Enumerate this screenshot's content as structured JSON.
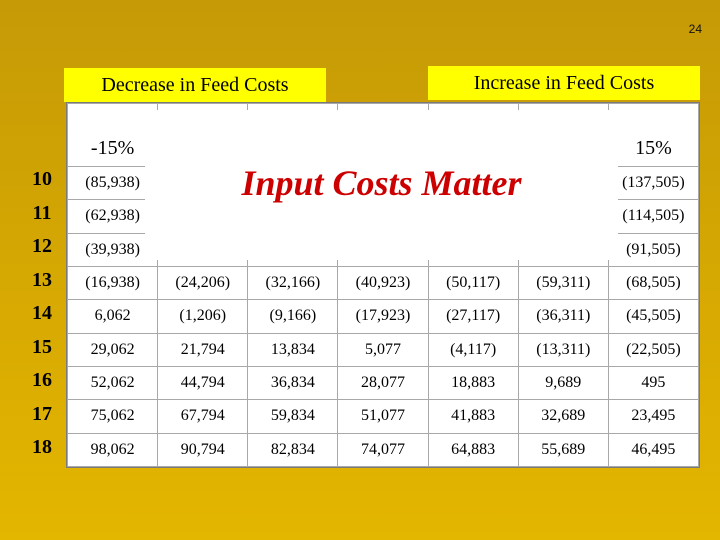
{
  "slide_number": "24",
  "headers": {
    "decrease": "Decrease in Feed Costs",
    "increase": "Increase in Feed Costs"
  },
  "overlay_title": "Input Costs Matter",
  "columns": [
    "-15%",
    "",
    "",
    "",
    "",
    "",
    "15%"
  ],
  "row_labels": [
    "10",
    "11",
    "12",
    "13",
    "14",
    "15",
    "16",
    "17",
    "18"
  ],
  "rows": [
    [
      "(85,938)",
      "",
      "",
      "",
      "",
      "",
      "(137,505)"
    ],
    [
      "(62,938)",
      "",
      "",
      "",
      "",
      "",
      "(114,505)"
    ],
    [
      "(39,938)",
      "",
      "",
      "",
      "",
      "",
      "(91,505)"
    ],
    [
      "(16,938)",
      "(24,206)",
      "(32,166)",
      "(40,923)",
      "(50,117)",
      "(59,311)",
      "(68,505)"
    ],
    [
      "6,062",
      "(1,206)",
      "(9,166)",
      "(17,923)",
      "(27,117)",
      "(36,311)",
      "(45,505)"
    ],
    [
      "29,062",
      "21,794",
      "13,834",
      "5,077",
      "(4,117)",
      "(13,311)",
      "(22,505)"
    ],
    [
      "52,062",
      "44,794",
      "36,834",
      "28,077",
      "18,883",
      "9,689",
      "495"
    ],
    [
      "75,062",
      "67,794",
      "59,834",
      "51,077",
      "41,883",
      "32,689",
      "23,495"
    ],
    [
      "98,062",
      "90,794",
      "82,834",
      "74,077",
      "64,883",
      "55,689",
      "46,495"
    ]
  ]
}
